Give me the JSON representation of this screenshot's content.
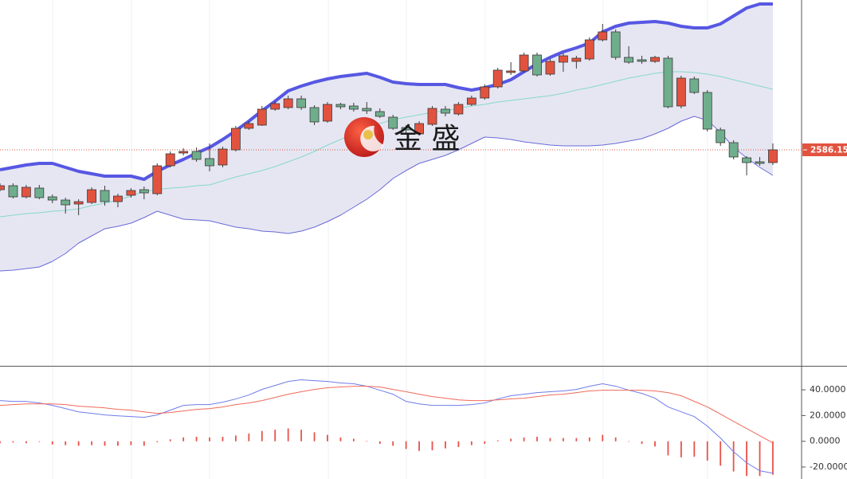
{
  "watermark": "金 盛",
  "chart_data": [
    {
      "type": "candlestick",
      "ylim": [
        2518.65,
        2633.15
      ],
      "up_color": "#e2533f",
      "down_color": "#6fae8c",
      "band_fill": "#e6e6f2",
      "last_price": 2586.15,
      "last_price_color": "#e2533f",
      "candles": {
        "open": [
          2573.65,
          2574.9,
          2571.4,
          2574.15,
          2571.4,
          2570.4,
          2569.15,
          2569.65,
          2573.4,
          2569.9,
          2571.9,
          2573.65,
          2572.4,
          2581.15,
          2585.15,
          2585.65,
          2583.4,
          2581.4,
          2586.15,
          2592.9,
          2593.9,
          2598.9,
          2599.4,
          2602.15,
          2599.4,
          2595.15,
          2600.4,
          2599.9,
          2599.15,
          2598.15,
          2596.4,
          2593.15,
          2591.15,
          2594.15,
          2598.9,
          2597.4,
          2600.4,
          2602.4,
          2605.9,
          2610.4,
          2610.9,
          2615.9,
          2609.9,
          2613.65,
          2613.9,
          2614.65,
          2620.65,
          2623.15,
          2615.15,
          2614.4,
          2613.9,
          2614.9,
          2599.9,
          2608.4,
          2604.15,
          2592.4,
          2588.4,
          2583.65,
          2582.4,
          2582.15
        ],
        "high": [
          2575.65,
          2575.65,
          2575.15,
          2575.15,
          2572.15,
          2571.15,
          2570.65,
          2574.4,
          2574.9,
          2572.4,
          2574.15,
          2574.65,
          2581.9,
          2585.65,
          2586.65,
          2586.9,
          2588.15,
          2587.15,
          2593.65,
          2595.15,
          2599.9,
          2601.4,
          2603.15,
          2603.15,
          2600.15,
          2601.15,
          2600.9,
          2600.9,
          2601.15,
          2599.15,
          2597.15,
          2593.9,
          2595.15,
          2599.9,
          2599.9,
          2601.15,
          2603.15,
          2606.65,
          2611.9,
          2613.65,
          2616.65,
          2616.65,
          2614.65,
          2616.4,
          2615.65,
          2621.4,
          2625.65,
          2623.9,
          2618.65,
          2615.65,
          2615.65,
          2615.65,
          2609.4,
          2609.15,
          2604.9,
          2593.15,
          2589.15,
          2584.15,
          2583.9,
          2588.15
        ],
        "low": [
          2573.15,
          2570.9,
          2570.9,
          2570.65,
          2569.4,
          2566.15,
          2565.65,
          2569.15,
          2568.65,
          2568.15,
          2571.15,
          2570.65,
          2571.9,
          2580.65,
          2584.4,
          2582.4,
          2579.4,
          2580.65,
          2585.65,
          2592.4,
          2593.65,
          2598.4,
          2598.9,
          2598.65,
          2593.9,
          2594.65,
          2598.9,
          2598.15,
          2597.4,
          2596.15,
          2592.4,
          2591.4,
          2590.65,
          2593.65,
          2596.65,
          2596.9,
          2599.9,
          2601.9,
          2605.4,
          2609.65,
          2610.4,
          2609.15,
          2609.4,
          2610.65,
          2611.65,
          2614.15,
          2620.15,
          2614.4,
          2613.15,
          2613.15,
          2613.4,
          2599.15,
          2599.15,
          2603.65,
          2591.9,
          2587.4,
          2583.15,
          2578.15,
          2581.15,
          2581.4
        ],
        "close": [
          2574.9,
          2571.4,
          2574.4,
          2571.15,
          2570.4,
          2568.9,
          2569.9,
          2573.65,
          2569.9,
          2571.65,
          2573.4,
          2572.65,
          2581.15,
          2584.9,
          2585.65,
          2583.15,
          2581.15,
          2586.4,
          2592.9,
          2594.4,
          2598.9,
          2600.65,
          2602.15,
          2599.4,
          2594.9,
          2600.4,
          2599.65,
          2598.9,
          2598.4,
          2596.65,
          2592.9,
          2592.4,
          2594.4,
          2599.15,
          2597.65,
          2600.4,
          2602.4,
          2605.9,
          2611.15,
          2610.9,
          2615.9,
          2609.65,
          2613.9,
          2615.65,
          2614.9,
          2620.65,
          2623.15,
          2615.15,
          2613.65,
          2613.9,
          2615.15,
          2599.65,
          2608.65,
          2604.15,
          2592.65,
          2588.4,
          2583.9,
          2582.15,
          2581.9,
          2586.15
        ]
      },
      "overlays": [
        {
          "color": "#5757e3",
          "values": [
            2579.9,
            2580.65,
            2581.4,
            2581.9,
            2581.9,
            2580.65,
            2579.4,
            2578.65,
            2577.9,
            2577.9,
            2577.9,
            2576.9,
            2579.4,
            2581.4,
            2583.15,
            2585.15,
            2586.9,
            2589.4,
            2592.15,
            2595.15,
            2598.4,
            2601.4,
            2604.65,
            2606.15,
            2607.4,
            2608.4,
            2609.15,
            2609.65,
            2610.15,
            2608.9,
            2607.4,
            2606.9,
            2606.65,
            2606.65,
            2606.65,
            2605.65,
            2604.9,
            2605.65,
            2606.65,
            2608.15,
            2610.65,
            2613.15,
            2615.15,
            2616.9,
            2618.15,
            2619.65,
            2623.15,
            2624.9,
            2625.9,
            2626.15,
            2626.4,
            2625.9,
            2624.9,
            2624.4,
            2624.4,
            2625.65,
            2628.15,
            2630.65,
            2631.9,
            2631.9
          ]
        },
        {
          "color": "#86d8cb",
          "values": [
            2565.15,
            2565.65,
            2566.15,
            2566.4,
            2566.9,
            2567.15,
            2567.65,
            2568.65,
            2569.4,
            2570.4,
            2571.65,
            2573.15,
            2573.65,
            2574.15,
            2574.4,
            2574.9,
            2575.15,
            2576.4,
            2577.65,
            2578.65,
            2579.65,
            2580.9,
            2582.4,
            2583.9,
            2585.65,
            2587.65,
            2589.4,
            2591.15,
            2593.15,
            2594.4,
            2595.65,
            2596.4,
            2597.15,
            2597.9,
            2598.4,
            2599.15,
            2599.9,
            2600.4,
            2601.15,
            2601.65,
            2602.15,
            2602.65,
            2603.15,
            2603.9,
            2604.9,
            2605.65,
            2606.65,
            2607.65,
            2608.65,
            2609.4,
            2610.15,
            2610.65,
            2610.65,
            2610.4,
            2609.9,
            2609.15,
            2608.15,
            2607.15,
            2606.15,
            2605.15
          ]
        },
        {
          "color": "#6a6ad9",
          "values": [
            2548.15,
            2548.4,
            2548.9,
            2549.4,
            2551.15,
            2553.65,
            2556.9,
            2559.15,
            2561.4,
            2562.15,
            2563.15,
            2564.9,
            2566.9,
            2565.65,
            2564.4,
            2564.15,
            2563.9,
            2562.9,
            2561.9,
            2561.4,
            2560.65,
            2560.4,
            2559.9,
            2560.65,
            2561.9,
            2563.65,
            2565.65,
            2568.15,
            2570.65,
            2573.65,
            2577.15,
            2579.65,
            2581.9,
            2583.15,
            2584.4,
            2586.15,
            2588.15,
            2590.15,
            2589.9,
            2589.4,
            2588.65,
            2588.15,
            2587.65,
            2587.4,
            2587.4,
            2587.4,
            2587.65,
            2588.15,
            2588.9,
            2589.65,
            2591.15,
            2592.9,
            2595.15,
            2596.65,
            2595.4,
            2591.65,
            2586.9,
            2583.65,
            2580.65,
            2578.15
          ]
        }
      ]
    },
    {
      "type": "macd",
      "ylim": [
        -29.3,
        57.4
      ],
      "yticks": [
        {
          "value": 40,
          "label": "40.0000"
        },
        {
          "value": 20,
          "label": "20.0000"
        },
        {
          "value": 0,
          "label": "0.0000"
        },
        {
          "value": -20,
          "label": "-20.0000"
        }
      ],
      "series": [
        {
          "color": "#6f7ce8",
          "values": [
            31.6,
            31.0,
            31.0,
            29.8,
            27.9,
            25.4,
            22.9,
            21.7,
            20.5,
            19.8,
            19.2,
            18.6,
            20.5,
            24.2,
            27.9,
            28.5,
            28.5,
            30.4,
            32.9,
            36.0,
            40.3,
            43.4,
            46.5,
            47.8,
            47.1,
            46.5,
            45.3,
            44.7,
            42.8,
            39.7,
            36.6,
            31.0,
            29.1,
            27.9,
            27.9,
            27.9,
            28.5,
            29.8,
            32.9,
            35.4,
            36.6,
            37.8,
            38.5,
            39.1,
            40.3,
            42.8,
            44.7,
            42.8,
            39.7,
            37.2,
            33.5,
            26.7,
            22.9,
            19.2,
            11.8,
            2.5,
            -8.1,
            -16.7,
            -22.9,
            -24.8
          ]
        },
        {
          "color": "#f06a5a",
          "values": [
            27.9,
            28.5,
            29.1,
            29.1,
            29.1,
            28.5,
            27.3,
            26.7,
            26.0,
            24.8,
            24.2,
            22.9,
            21.7,
            22.3,
            23.6,
            24.8,
            25.4,
            26.7,
            28.5,
            29.8,
            31.6,
            34.1,
            36.6,
            38.5,
            40.3,
            41.6,
            42.2,
            42.8,
            42.8,
            42.2,
            40.3,
            38.5,
            36.6,
            34.7,
            33.5,
            32.2,
            31.6,
            31.6,
            32.2,
            32.9,
            33.5,
            34.7,
            36.0,
            36.6,
            37.8,
            39.1,
            39.7,
            39.7,
            39.7,
            39.7,
            39.1,
            37.8,
            35.4,
            31.0,
            26.7,
            21.1,
            15.5,
            9.9,
            4.3,
            -1.2
          ]
        }
      ],
      "histogram": {
        "color": "#e8524a",
        "values": [
          -1.5,
          -1,
          -1.5,
          -0.5,
          -2.5,
          -3,
          -3.5,
          -3,
          -3.5,
          -3.5,
          -3,
          -3.5,
          -0.8,
          1.5,
          3,
          3.5,
          3,
          3.5,
          4.5,
          6,
          8,
          9,
          10,
          9,
          7,
          5,
          3,
          2,
          0.2,
          -2,
          -3.5,
          -6,
          -7.5,
          -7,
          -5.5,
          -4.5,
          -3,
          -2,
          0.7,
          2,
          3,
          3.5,
          2.5,
          2.5,
          2.5,
          3,
          5,
          3,
          0,
          -2,
          -4,
          -11,
          -12.5,
          -12,
          -15,
          -19,
          -23.5,
          -27,
          -27,
          -26
        ]
      }
    }
  ]
}
